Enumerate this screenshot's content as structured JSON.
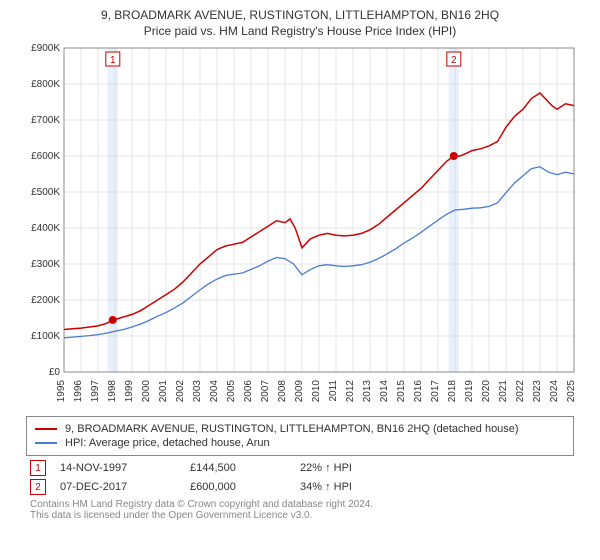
{
  "title_line1": "9, BROADMARK AVENUE, RUSTINGTON, LITTLEHAMPTON, BN16 2HQ",
  "title_line2": "Price paid vs. HM Land Registry's House Price Index (HPI)",
  "chart": {
    "type": "line",
    "background_color": "#ffffff",
    "plot_border_color": "#888888",
    "grid_color": "#cccccc",
    "ylim": [
      0,
      900000
    ],
    "ytick_step": 100000,
    "ytick_labels": [
      "£0",
      "£100K",
      "£200K",
      "£300K",
      "£400K",
      "£500K",
      "£600K",
      "£700K",
      "£800K",
      "£900K"
    ],
    "x_years": [
      1995,
      1996,
      1997,
      1998,
      1999,
      2000,
      2001,
      2002,
      2003,
      2004,
      2005,
      2006,
      2007,
      2008,
      2009,
      2010,
      2011,
      2012,
      2013,
      2014,
      2015,
      2016,
      2017,
      2018,
      2019,
      2020,
      2021,
      2022,
      2023,
      2024,
      2025
    ],
    "highlight_bands": [
      {
        "x_center_year": 1997.87,
        "width_years": 0.6,
        "fill": "#e8f0fb"
      },
      {
        "x_center_year": 2017.93,
        "width_years": 0.6,
        "fill": "#e8f0fb"
      }
    ],
    "series": [
      {
        "name": "property",
        "label": "9, BROADMARK AVENUE, RUSTINGTON, LITTLEHAMPTON, BN16 2HQ (detached house)",
        "color": "#cc0000",
        "line_width": 1.5,
        "points": [
          [
            1995,
            118000
          ],
          [
            1995.5,
            120000
          ],
          [
            1996,
            122000
          ],
          [
            1996.5,
            125000
          ],
          [
            1997,
            128000
          ],
          [
            1997.5,
            135000
          ],
          [
            1997.87,
            144500
          ],
          [
            1998.3,
            150000
          ],
          [
            1999,
            160000
          ],
          [
            1999.5,
            170000
          ],
          [
            2000,
            185000
          ],
          [
            2000.5,
            200000
          ],
          [
            2001,
            215000
          ],
          [
            2001.5,
            230000
          ],
          [
            2002,
            250000
          ],
          [
            2002.5,
            275000
          ],
          [
            2003,
            300000
          ],
          [
            2003.5,
            320000
          ],
          [
            2004,
            340000
          ],
          [
            2004.5,
            350000
          ],
          [
            2005,
            355000
          ],
          [
            2005.5,
            360000
          ],
          [
            2006,
            375000
          ],
          [
            2006.5,
            390000
          ],
          [
            2007,
            405000
          ],
          [
            2007.5,
            420000
          ],
          [
            2008,
            415000
          ],
          [
            2008.3,
            425000
          ],
          [
            2008.6,
            400000
          ],
          [
            2009,
            345000
          ],
          [
            2009.5,
            370000
          ],
          [
            2010,
            380000
          ],
          [
            2010.5,
            385000
          ],
          [
            2011,
            380000
          ],
          [
            2011.5,
            378000
          ],
          [
            2012,
            380000
          ],
          [
            2012.5,
            385000
          ],
          [
            2013,
            395000
          ],
          [
            2013.5,
            410000
          ],
          [
            2014,
            430000
          ],
          [
            2014.5,
            450000
          ],
          [
            2015,
            470000
          ],
          [
            2015.5,
            490000
          ],
          [
            2016,
            510000
          ],
          [
            2016.5,
            535000
          ],
          [
            2017,
            560000
          ],
          [
            2017.5,
            585000
          ],
          [
            2017.93,
            600000
          ],
          [
            2018.3,
            600000
          ],
          [
            2018.7,
            608000
          ],
          [
            2019,
            615000
          ],
          [
            2019.5,
            620000
          ],
          [
            2020,
            628000
          ],
          [
            2020.5,
            640000
          ],
          [
            2021,
            680000
          ],
          [
            2021.5,
            710000
          ],
          [
            2022,
            730000
          ],
          [
            2022.5,
            760000
          ],
          [
            2023,
            775000
          ],
          [
            2023.3,
            760000
          ],
          [
            2023.7,
            740000
          ],
          [
            2024,
            730000
          ],
          [
            2024.5,
            745000
          ],
          [
            2025,
            740000
          ]
        ]
      },
      {
        "name": "hpi",
        "label": "HPI: Average price, detached house, Arun",
        "color": "#4a7bd0",
        "line_width": 1.3,
        "points": [
          [
            1995,
            95000
          ],
          [
            1995.5,
            97000
          ],
          [
            1996,
            99000
          ],
          [
            1996.5,
            101000
          ],
          [
            1997,
            104000
          ],
          [
            1997.5,
            108000
          ],
          [
            1998,
            113000
          ],
          [
            1998.5,
            118000
          ],
          [
            1999,
            125000
          ],
          [
            1999.5,
            133000
          ],
          [
            2000,
            143000
          ],
          [
            2000.5,
            155000
          ],
          [
            2001,
            165000
          ],
          [
            2001.5,
            178000
          ],
          [
            2002,
            192000
          ],
          [
            2002.5,
            210000
          ],
          [
            2003,
            228000
          ],
          [
            2003.5,
            245000
          ],
          [
            2004,
            258000
          ],
          [
            2004.5,
            268000
          ],
          [
            2005,
            272000
          ],
          [
            2005.5,
            275000
          ],
          [
            2006,
            285000
          ],
          [
            2006.5,
            295000
          ],
          [
            2007,
            308000
          ],
          [
            2007.5,
            318000
          ],
          [
            2008,
            315000
          ],
          [
            2008.5,
            300000
          ],
          [
            2009,
            270000
          ],
          [
            2009.5,
            285000
          ],
          [
            2010,
            295000
          ],
          [
            2010.5,
            298000
          ],
          [
            2011,
            295000
          ],
          [
            2011.5,
            293000
          ],
          [
            2012,
            295000
          ],
          [
            2012.5,
            298000
          ],
          [
            2013,
            305000
          ],
          [
            2013.5,
            315000
          ],
          [
            2014,
            328000
          ],
          [
            2014.5,
            342000
          ],
          [
            2015,
            358000
          ],
          [
            2015.5,
            372000
          ],
          [
            2016,
            388000
          ],
          [
            2016.5,
            405000
          ],
          [
            2017,
            422000
          ],
          [
            2017.5,
            438000
          ],
          [
            2018,
            450000
          ],
          [
            2018.5,
            452000
          ],
          [
            2019,
            455000
          ],
          [
            2019.5,
            456000
          ],
          [
            2020,
            460000
          ],
          [
            2020.5,
            470000
          ],
          [
            2021,
            498000
          ],
          [
            2021.5,
            525000
          ],
          [
            2022,
            545000
          ],
          [
            2022.5,
            565000
          ],
          [
            2023,
            570000
          ],
          [
            2023.5,
            555000
          ],
          [
            2024,
            548000
          ],
          [
            2024.5,
            555000
          ],
          [
            2025,
            550000
          ]
        ]
      }
    ],
    "markers": [
      {
        "n": 1,
        "year": 1997.87,
        "value": 144500,
        "color": "#cc0000",
        "label_y_offset": -20
      },
      {
        "n": 2,
        "year": 2017.93,
        "value": 600000,
        "color": "#cc0000",
        "label_y_offset": -20
      }
    ]
  },
  "legend": {
    "border_color": "#888888",
    "items": [
      {
        "color": "#cc0000",
        "text": "9, BROADMARK AVENUE, RUSTINGTON, LITTLEHAMPTON, BN16 2HQ (detached house)"
      },
      {
        "color": "#4a7bd0",
        "text": "HPI: Average price, detached house, Arun"
      }
    ]
  },
  "events": [
    {
      "n": "1",
      "color": "#cc0000",
      "date": "14-NOV-1997",
      "price": "£144,500",
      "delta": "22% ↑ HPI"
    },
    {
      "n": "2",
      "color": "#cc0000",
      "date": "07-DEC-2017",
      "price": "£600,000",
      "delta": "34% ↑ HPI"
    }
  ],
  "footer_line1": "Contains HM Land Registry data © Crown copyright and database right 2024.",
  "footer_line2": "This data is licensed under the Open Government Licence v3.0."
}
